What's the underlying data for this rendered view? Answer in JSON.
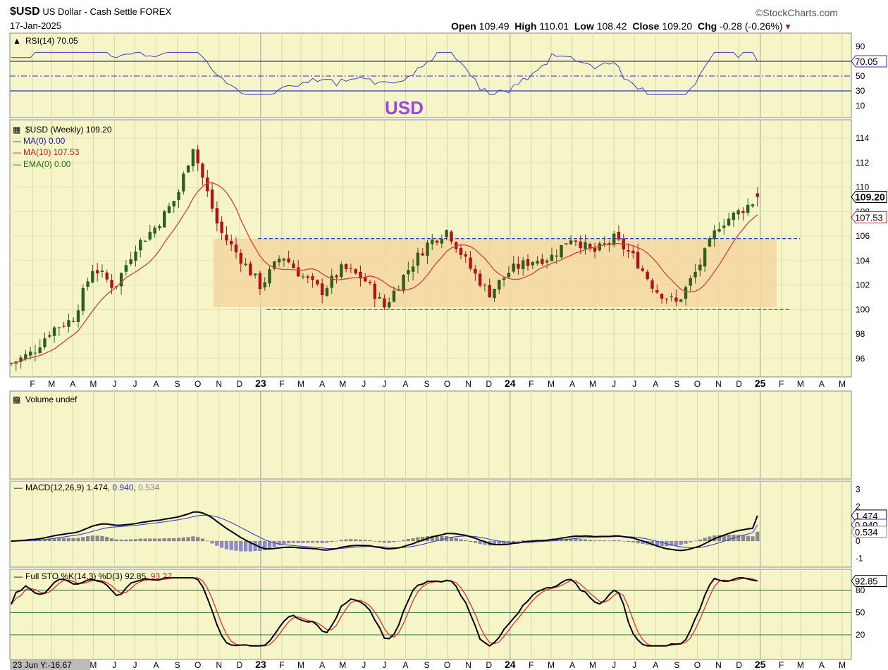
{
  "header": {
    "symbol": "$USD",
    "name": "US Dollar - Cash Settle",
    "exchange": "FOREX",
    "date": "17-Jan-2025",
    "brand": "©StockCharts.com",
    "open_label": "Open",
    "open": "109.49",
    "high_label": "High",
    "high": "110.01",
    "low_label": "Low",
    "low": "108.42",
    "close_label": "Close",
    "close": "109.20",
    "chg_label": "Chg",
    "chg": "-0.28 (-0.26%)"
  },
  "annotation": "USD",
  "colors": {
    "bg": "#f5f5c8",
    "up": "#2d5e1e",
    "down": "#b0101a",
    "ma": "#d04040",
    "box": "#f5d7a0",
    "blue": "#3030c0"
  },
  "rsi": {
    "label": "RSI(14) 70.05",
    "value_tag": "70.05",
    "ticks": [
      "90",
      "70",
      "50",
      "30",
      "10"
    ],
    "levels": [
      70,
      50,
      30
    ]
  },
  "price": {
    "legend": [
      {
        "text": "$USD (Weekly) 109.20",
        "color": "#000000"
      },
      {
        "text": "MA(0) 0.00",
        "color": "#2020a0"
      },
      {
        "text": "MA(10) 107.53",
        "color": "#c02020"
      },
      {
        "text": "EMA(0) 0.00",
        "color": "#207020"
      }
    ],
    "ticks": [
      114,
      112,
      110,
      108,
      106,
      104,
      102,
      100,
      98,
      96
    ],
    "close_tag": "109.20",
    "ma_tag": "107.53",
    "resistance": 105.8,
    "support": 100.0,
    "range_box": {
      "from": 100.2,
      "to": 105.8
    }
  },
  "months_top": [
    "F",
    "M",
    "A",
    "M",
    "J",
    "J",
    "A",
    "S",
    "O",
    "N",
    "D",
    "23",
    "F",
    "M",
    "A",
    "M",
    "J",
    "J",
    "A",
    "S",
    "O",
    "N",
    "D",
    "24",
    "F",
    "M",
    "A",
    "M",
    "J",
    "J",
    "A",
    "S",
    "O",
    "N",
    "D",
    "25",
    "F",
    "M",
    "A",
    "M"
  ],
  "months_bottom": [
    "M",
    "J",
    "J",
    "A",
    "S",
    "O",
    "N",
    "D",
    "23",
    "F",
    "M",
    "A",
    "M",
    "J",
    "J",
    "A",
    "S",
    "O",
    "N",
    "D",
    "24",
    "F",
    "M",
    "A",
    "M",
    "J",
    "J",
    "A",
    "S",
    "O",
    "N",
    "D",
    "25",
    "F",
    "M",
    "A",
    "M"
  ],
  "volume": {
    "label": "Volume undef"
  },
  "macd": {
    "label": "MACD(12,26,9)",
    "v1": "1.474",
    "v2": "0.940",
    "v3": "0.534",
    "ticks": [
      "3",
      "2",
      "1",
      "0",
      "-1"
    ],
    "tags": [
      "1.474",
      "0.940",
      "0.534"
    ]
  },
  "sto": {
    "label": "Full STO %K(14,3) %D(3) 92.85,",
    "d_val": "93.27",
    "ticks": [
      "80",
      "50",
      "20"
    ],
    "tag": "92.85",
    "footer": "23 Jun Y:-16.67"
  },
  "chart_data": {
    "type": "candlestick",
    "title": "$USD US Dollar - Cash Settle FOREX",
    "period": "Weekly",
    "ylim": [
      94.5,
      115.5
    ],
    "x_range": [
      "2022-01",
      "2025-05"
    ],
    "close_path": [
      {
        "date": "2022-01",
        "value": 95.6
      },
      {
        "date": "2022-02",
        "value": 96.5
      },
      {
        "date": "2022-03",
        "value": 98.4
      },
      {
        "date": "2022-04",
        "value": 99.2
      },
      {
        "date": "2022-05",
        "value": 103.5
      },
      {
        "date": "2022-06",
        "value": 101.8
      },
      {
        "date": "2022-07",
        "value": 105.1
      },
      {
        "date": "2022-08",
        "value": 106.8
      },
      {
        "date": "2022-09",
        "value": 109.3
      },
      {
        "date": "2022-09-28",
        "value": 114.1
      },
      {
        "date": "2022-10",
        "value": 112.0
      },
      {
        "date": "2022-11",
        "value": 106.5
      },
      {
        "date": "2022-12",
        "value": 104.3
      },
      {
        "date": "2023-01",
        "value": 101.9
      },
      {
        "date": "2023-02",
        "value": 104.5
      },
      {
        "date": "2023-03",
        "value": 102.8
      },
      {
        "date": "2023-04",
        "value": 101.5
      },
      {
        "date": "2023-05",
        "value": 103.4
      },
      {
        "date": "2023-06",
        "value": 102.5
      },
      {
        "date": "2023-07",
        "value": 100.2
      },
      {
        "date": "2023-08",
        "value": 103.0
      },
      {
        "date": "2023-09",
        "value": 105.3
      },
      {
        "date": "2023-10",
        "value": 106.5
      },
      {
        "date": "2023-11",
        "value": 103.6
      },
      {
        "date": "2023-12",
        "value": 101.3
      },
      {
        "date": "2024-01",
        "value": 103.2
      },
      {
        "date": "2024-02",
        "value": 104.0
      },
      {
        "date": "2024-03",
        "value": 104.3
      },
      {
        "date": "2024-04",
        "value": 106.0
      },
      {
        "date": "2024-05",
        "value": 104.6
      },
      {
        "date": "2024-06",
        "value": 105.8
      },
      {
        "date": "2024-07",
        "value": 104.2
      },
      {
        "date": "2024-08",
        "value": 101.6
      },
      {
        "date": "2024-09",
        "value": 100.5
      },
      {
        "date": "2024-10",
        "value": 103.3
      },
      {
        "date": "2024-11",
        "value": 106.9
      },
      {
        "date": "2024-12",
        "value": 108.0
      },
      {
        "date": "2025-01",
        "value": 109.2
      }
    ],
    "ma10_last": 107.53,
    "rsi_last": 70.05,
    "macd_last": [
      1.474,
      0.94,
      0.534
    ],
    "sto_last": [
      92.85,
      93.27
    ]
  }
}
